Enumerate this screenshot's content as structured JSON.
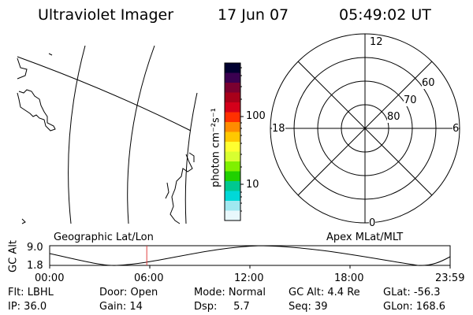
{
  "header": {
    "instrument": "Ultraviolet Imager",
    "date": "17 Jun 07",
    "time": "05:49:02 UT"
  },
  "map": {
    "icons": [
      "coastline-map-icon"
    ]
  },
  "colorbar": {
    "label": "photon cm⁻²s⁻¹",
    "ticks": [
      {
        "label": "100",
        "value": 100
      },
      {
        "label": "10",
        "value": 10
      }
    ],
    "colors": [
      "#000030",
      "#3a0050",
      "#7a0030",
      "#a8001a",
      "#d4001a",
      "#ff3000",
      "#ff8c00",
      "#ffc800",
      "#ffff30",
      "#d8ff30",
      "#80f000",
      "#20d000",
      "#00c890",
      "#00d8d8",
      "#a0e8f0",
      "#e8f8fc"
    ]
  },
  "polar": {
    "mlt_labels": {
      "top": "12",
      "left": "18",
      "right": "6",
      "bottom": "0"
    },
    "lat_labels": [
      "60",
      "70",
      "80"
    ]
  },
  "strip": {
    "left_title": "Geographic Lat/Lon",
    "right_title": "Apex MLat/MLT",
    "axis_label": "GC Alt",
    "y_max": "9.0",
    "y_min": "1.8",
    "x_ticks": [
      "00:00",
      "06:00",
      "12:00",
      "18:00",
      "23:59"
    ],
    "current_time_hours": 5.82
  },
  "footer": {
    "rows": [
      [
        "Flt: LBHL",
        "Door: Open",
        "Mode: Normal",
        "GC Alt: 4.4 Re",
        "GLat: -56.3"
      ],
      [
        "IP: 36.0",
        "Gain: 14",
        "Dsp:     5.7",
        "Seq: 39",
        "GLon: 168.6"
      ]
    ]
  },
  "colors": {
    "time_marker": "#e04040",
    "line": "#000000"
  }
}
